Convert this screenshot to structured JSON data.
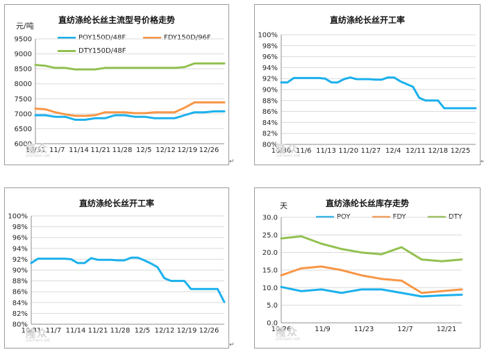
{
  "chart_data": [
    {
      "type": "line",
      "title": "直纺涤纶长丝主流型号价格走势",
      "unit_label": "元/吨",
      "ylim": [
        6000,
        9500
      ],
      "yticks": [
        6000,
        6500,
        7000,
        7500,
        8000,
        8500,
        9000,
        9500
      ],
      "x_labels": [
        "10/31",
        "11/7",
        "11/14",
        "11/21",
        "11/28",
        "12/5",
        "12/12",
        "12/19",
        "12/26"
      ],
      "legend_position": "top-left",
      "series": [
        {
          "name": "POY150D/48F",
          "color": "#1ab0ec",
          "values": [
            6950,
            6950,
            6900,
            6900,
            6800,
            6800,
            6850,
            6850,
            6950,
            6950,
            6900,
            6900,
            6850,
            6850,
            6850,
            6950,
            7050,
            7050,
            7080,
            7080
          ]
        },
        {
          "name": "FDY150D/96F",
          "color": "#f79646",
          "values": [
            7170,
            7150,
            7050,
            6980,
            6930,
            6930,
            6950,
            7050,
            7050,
            7050,
            7020,
            7020,
            7050,
            7050,
            7050,
            7200,
            7380,
            7380,
            7380,
            7380
          ]
        },
        {
          "name": "DTY150D/48F",
          "color": "#92c050",
          "values": [
            8630,
            8600,
            8530,
            8530,
            8480,
            8480,
            8480,
            8530,
            8530,
            8530,
            8530,
            8530,
            8530,
            8530,
            8530,
            8560,
            8680,
            8680,
            8680,
            8680
          ]
        }
      ]
    },
    {
      "type": "line",
      "title": "直纺涤纶长丝开工率",
      "ylim": [
        80,
        100
      ],
      "yticks": [
        "80%",
        "82%",
        "84%",
        "86%",
        "88%",
        "90%",
        "92%",
        "94%",
        "96%",
        "98%",
        "100%"
      ],
      "x_labels": [
        "10/30",
        "11/6",
        "11/13",
        "11/20",
        "11/27",
        "12/4",
        "12/11",
        "12/18",
        "12/25"
      ],
      "series": [
        {
          "name": "",
          "color": "#1ab0ec",
          "values": [
            91.3,
            91.3,
            92.1,
            92.1,
            92.1,
            92.1,
            92.1,
            92.0,
            91.3,
            91.3,
            91.9,
            92.2,
            91.9,
            91.9,
            91.9,
            91.8,
            91.8,
            92.2,
            92.2,
            91.5,
            91.0,
            90.5,
            88.5,
            88.0,
            88.0,
            88.0,
            86.6,
            86.6,
            86.6,
            86.6,
            86.6,
            86.6
          ]
        }
      ]
    },
    {
      "type": "line",
      "title": "直纺涤纶长丝开工率",
      "ylim": [
        80,
        100
      ],
      "yticks": [
        "80%",
        "82%",
        "84%",
        "86%",
        "88%",
        "90%",
        "92%",
        "94%",
        "96%",
        "98%",
        "100%"
      ],
      "x_labels": [
        "10/31",
        "11/7",
        "11/14",
        "11/21",
        "11/28",
        "12/5",
        "12/12",
        "12/19",
        "12/26"
      ],
      "series": [
        {
          "name": "",
          "color": "#1ab0ec",
          "values": [
            91.3,
            92.1,
            92.1,
            92.1,
            92.1,
            92.1,
            92.0,
            91.3,
            91.3,
            92.2,
            91.9,
            91.9,
            91.9,
            91.8,
            91.8,
            92.3,
            92.3,
            91.8,
            91.2,
            90.5,
            88.5,
            88.0,
            88.0,
            88.0,
            86.5,
            86.5,
            86.5,
            86.5,
            86.5,
            84.1
          ]
        }
      ]
    },
    {
      "type": "line",
      "title": "直纺涤纶长丝库存走势",
      "unit_label": "天",
      "ylim": [
        0,
        30
      ],
      "yticks": [
        "0.0",
        "5.0",
        "10.0",
        "15.0",
        "20.0",
        "25.0",
        "30.0"
      ],
      "x_labels": [
        "10/26",
        "11/9",
        "11/23",
        "12/7",
        "12/21"
      ],
      "legend_position": "top",
      "series": [
        {
          "name": "POY",
          "color": "#1ab0ec",
          "values": [
            10.2,
            9.0,
            9.5,
            8.5,
            9.5,
            9.5,
            8.5,
            7.5,
            7.8,
            8.0
          ]
        },
        {
          "name": "FDY",
          "color": "#f79646",
          "values": [
            13.5,
            15.5,
            16.0,
            15.0,
            13.5,
            12.5,
            12.0,
            8.5,
            9.0,
            9.5
          ]
        },
        {
          "name": "DTY",
          "color": "#92c050",
          "values": [
            24.0,
            24.6,
            22.5,
            21.0,
            20.0,
            19.5,
            21.5,
            18.0,
            17.5,
            18.0
          ]
        }
      ]
    }
  ],
  "watermark": {
    "brand": "隆众",
    "site": "oilchem.net"
  },
  "colors": {
    "grid": "#d9d9d9",
    "axis": "#8c8c8c",
    "border": "#9a9a9a"
  }
}
